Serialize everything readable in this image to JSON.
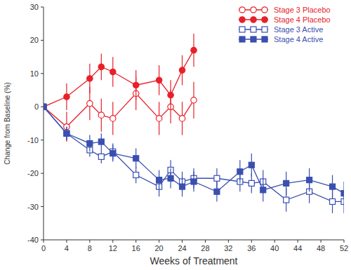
{
  "chart_data": {
    "type": "line",
    "x_label": "Weeks of Treatment",
    "y_label": "Change from Baseline (%)",
    "xlim": [
      0,
      52
    ],
    "xticks": [
      0,
      4,
      8,
      12,
      16,
      20,
      24,
      28,
      32,
      36,
      40,
      44,
      48,
      52
    ],
    "ylim": [
      -40,
      30
    ],
    "yticks": [
      -40,
      -30,
      -20,
      -10,
      0,
      10,
      20,
      30
    ],
    "grid": false,
    "legend": "upper-right",
    "series": [
      {
        "name": "Stage 3 Placebo",
        "color": "#e8202a",
        "marker": "circle-open",
        "line_style": "solid",
        "x": [
          0,
          4,
          8,
          10,
          12,
          16,
          20,
          22,
          24,
          26
        ],
        "values": [
          0,
          -6,
          1,
          -2.5,
          -3.5,
          4,
          -3.5,
          0,
          -3.5,
          2
        ],
        "errors": [
          0,
          4.5,
          5,
          5,
          5,
          5,
          5,
          5,
          5,
          5.5
        ]
      },
      {
        "name": "Stage 4 Placebo",
        "color": "#e8202a",
        "marker": "circle",
        "line_style": "solid",
        "x": [
          0,
          4,
          8,
          10,
          12,
          16,
          20,
          22,
          24,
          26
        ],
        "values": [
          0,
          3,
          8.5,
          12,
          10.5,
          6.5,
          8,
          3.5,
          11,
          17
        ],
        "errors": [
          0,
          4,
          4.5,
          4,
          4.5,
          4.5,
          4.5,
          4.5,
          4.5,
          5
        ]
      },
      {
        "name": "Stage 3 Active",
        "color": "#3a4fb0",
        "marker": "square-open",
        "line_style": "solid",
        "x": [
          0,
          4,
          8,
          10,
          12,
          16,
          20,
          22,
          24,
          26,
          30,
          34,
          36,
          38,
          42,
          46,
          50,
          52
        ],
        "values": [
          0,
          -8,
          -13,
          -15,
          -13.5,
          -20.5,
          -24,
          -19,
          -22.5,
          -21.5,
          -21.5,
          -22.5,
          -23,
          -22.5,
          -28,
          -25.5,
          -28.5,
          -28.5
        ],
        "errors": [
          0,
          2,
          2,
          2,
          2.5,
          2.5,
          3,
          3,
          3,
          3,
          3,
          3,
          3,
          3.5,
          3.5,
          3.5,
          3.5,
          3.5
        ]
      },
      {
        "name": "Stage 4 Active",
        "color": "#3a4fb0",
        "marker": "square",
        "line_style": "solid",
        "x": [
          0,
          4,
          8,
          10,
          12,
          16,
          20,
          22,
          24,
          26,
          30,
          34,
          36,
          38,
          42,
          46,
          50,
          52
        ],
        "values": [
          0,
          -8,
          -11,
          -10.5,
          -14,
          -15.5,
          -22,
          -21.5,
          -24,
          -22.5,
          -25.5,
          -19.5,
          -17.5,
          -25,
          -23,
          -22,
          -24,
          -26
        ],
        "errors": [
          0,
          2,
          2.5,
          2.5,
          2.5,
          3,
          3,
          3,
          3,
          3,
          3,
          3.5,
          3.5,
          3.5,
          3.5,
          3.5,
          3.5,
          3.5
        ]
      }
    ]
  }
}
